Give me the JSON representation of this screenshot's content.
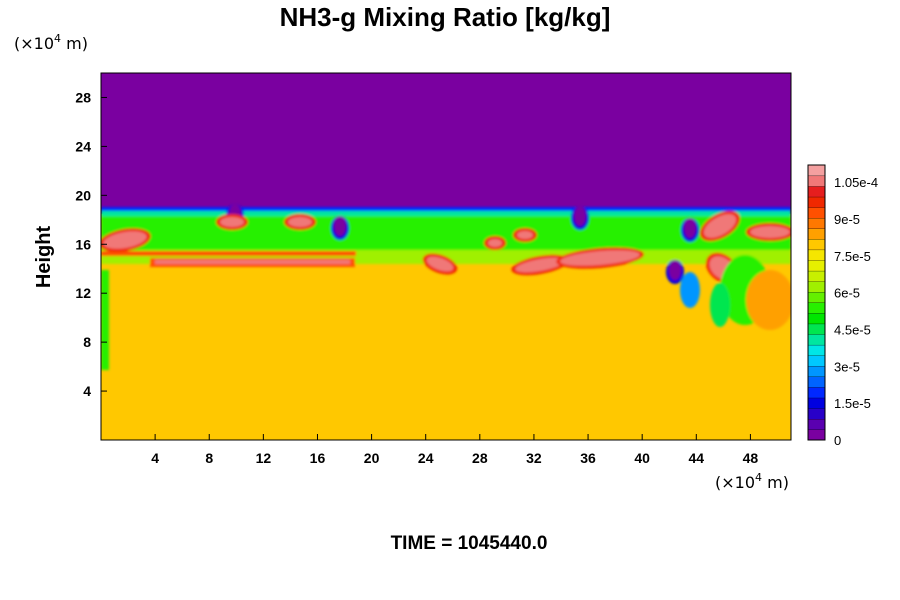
{
  "chart_data": {
    "type": "heatmap",
    "title": "NH3-g Mixing Ratio [kg/kg]",
    "ylabel": "Height",
    "x_unit_prefix": "(×10",
    "x_unit_exp": "4",
    "x_unit_suffix": " m)",
    "y_unit_prefix": "(×10",
    "y_unit_exp": "4",
    "y_unit_suffix": " m)",
    "xlim": [
      0,
      51
    ],
    "ylim": [
      0,
      30
    ],
    "x_ticks": [
      4,
      8,
      12,
      16,
      20,
      24,
      28,
      32,
      36,
      40,
      44,
      48
    ],
    "x_tick_labels": [
      "4",
      "8",
      "12",
      "16",
      "20",
      "24",
      "28",
      "32",
      "36",
      "40",
      "44",
      "48"
    ],
    "y_ticks": [
      4,
      8,
      12,
      16,
      20,
      24,
      28
    ],
    "y_tick_labels": [
      "4",
      "8",
      "12",
      "16",
      "20",
      "24",
      "28"
    ],
    "colorbar": {
      "range": [
        0,
        0.000112
      ],
      "tick_values": [
        0,
        1.5e-05,
        3e-05,
        4.5e-05,
        6e-05,
        7.5e-05,
        9e-05,
        0.000105
      ],
      "tick_labels": [
        "0",
        "1.5e-5",
        "3e-5",
        "4.5e-5",
        "6e-5",
        "7.5e-5",
        "9e-5",
        "1.05e-4"
      ],
      "colors": [
        "#7a00a0",
        "#5a00b0",
        "#2800c8",
        "#0000e0",
        "#0028ff",
        "#0064ff",
        "#0096ff",
        "#00c8ff",
        "#00e6e6",
        "#00e6a0",
        "#00e650",
        "#00e600",
        "#28f000",
        "#64f000",
        "#a0f000",
        "#c8f000",
        "#e6f000",
        "#f5e600",
        "#ffc800",
        "#ffa000",
        "#ff7800",
        "#ff5000",
        "#f02800",
        "#e61e1e",
        "#f07878",
        "#f4a0a0"
      ]
    },
    "field_description": {
      "upper_region_value": 0,
      "lower_region_value": 7.8e-05,
      "tropopause_height_approx": 18.5
    },
    "time_label": "TIME = 1045440.0"
  }
}
